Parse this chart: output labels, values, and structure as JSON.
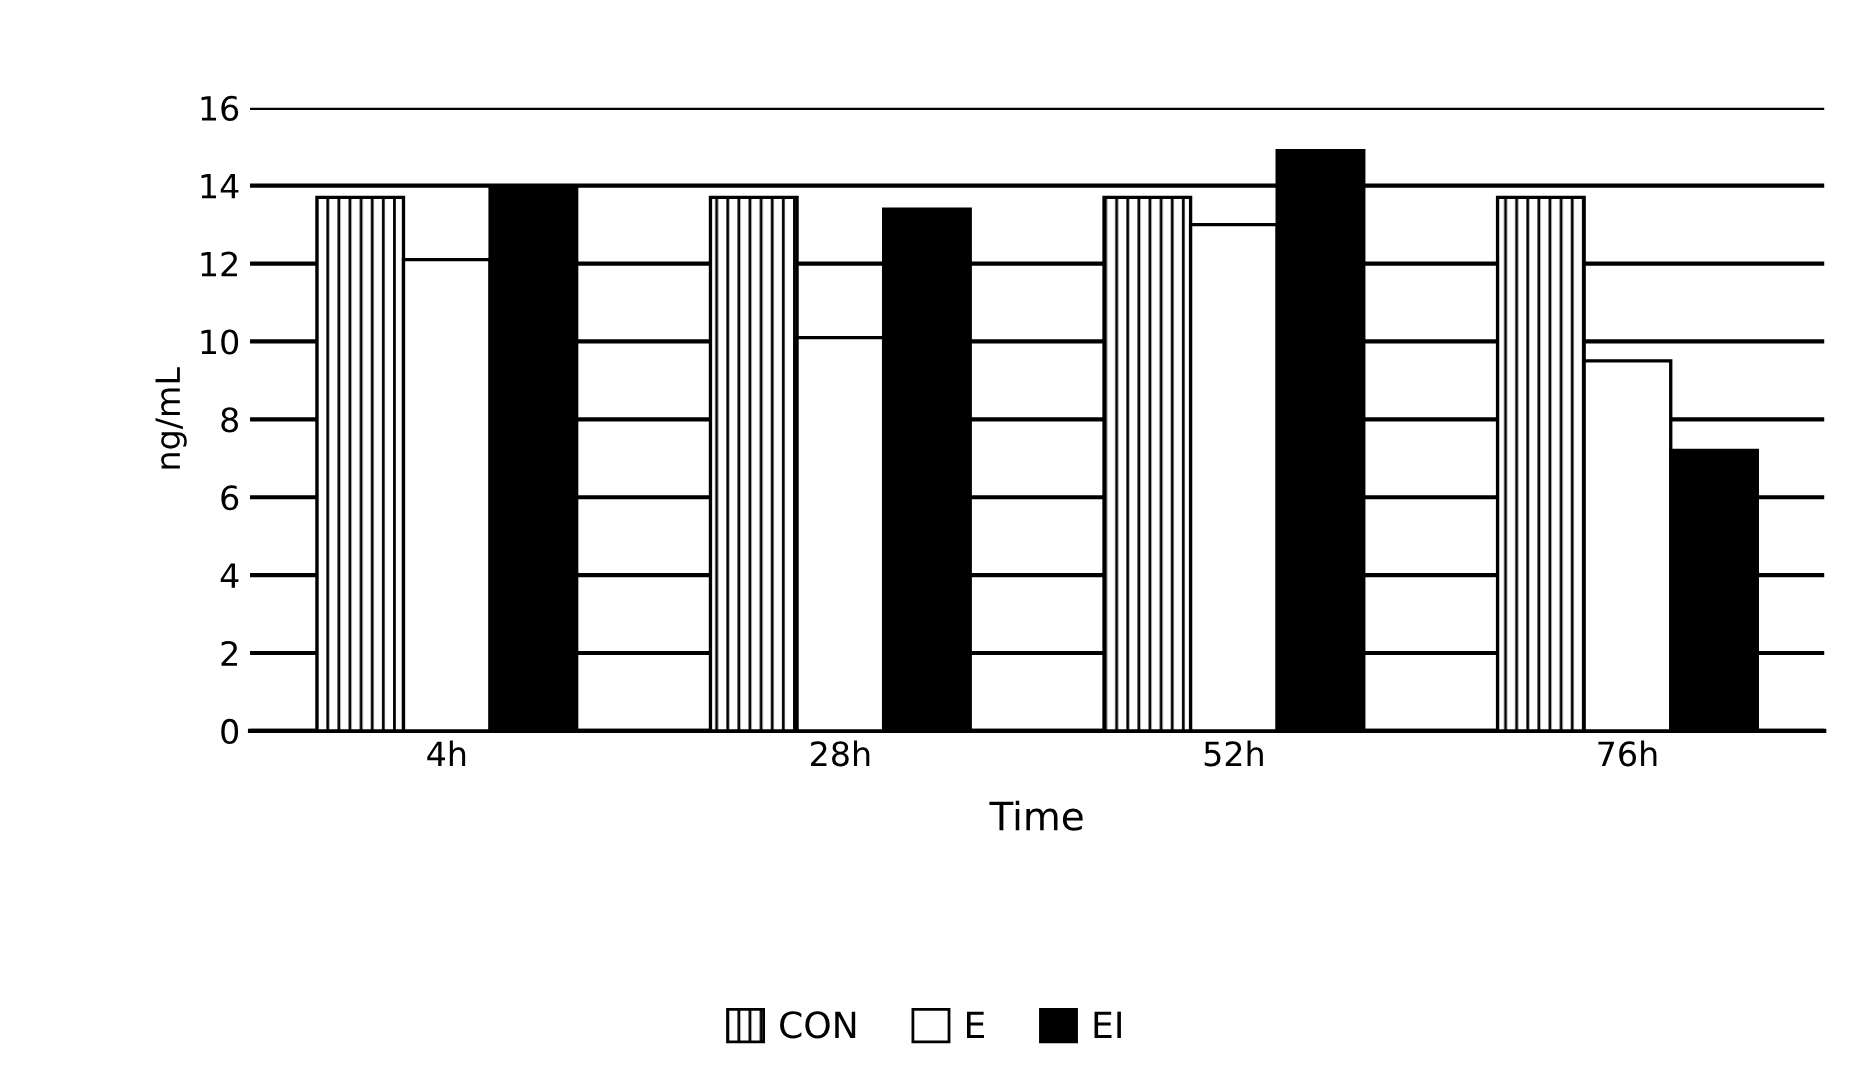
{
  "chart_data": {
    "type": "bar",
    "xlabel": "Time",
    "ylabel": "ng/mL",
    "categories": [
      "4h",
      "28h",
      "52h",
      "76h"
    ],
    "series": [
      {
        "name": "CON",
        "color": "#000000",
        "values": [
          13.7,
          13.7,
          13.7,
          13.7
        ]
      },
      {
        "name": "E",
        "color": "#ffffff",
        "values": [
          12.1,
          10.1,
          13.0,
          9.5
        ]
      },
      {
        "name": "EI",
        "color": "#000000",
        "values": [
          14.0,
          13.4,
          14.9,
          7.2
        ]
      }
    ],
    "ylim": [
      0,
      16
    ],
    "yticks": [
      0,
      2,
      4,
      6,
      8,
      10,
      12,
      14,
      16
    ],
    "grid": "y",
    "legend": "bottom"
  }
}
